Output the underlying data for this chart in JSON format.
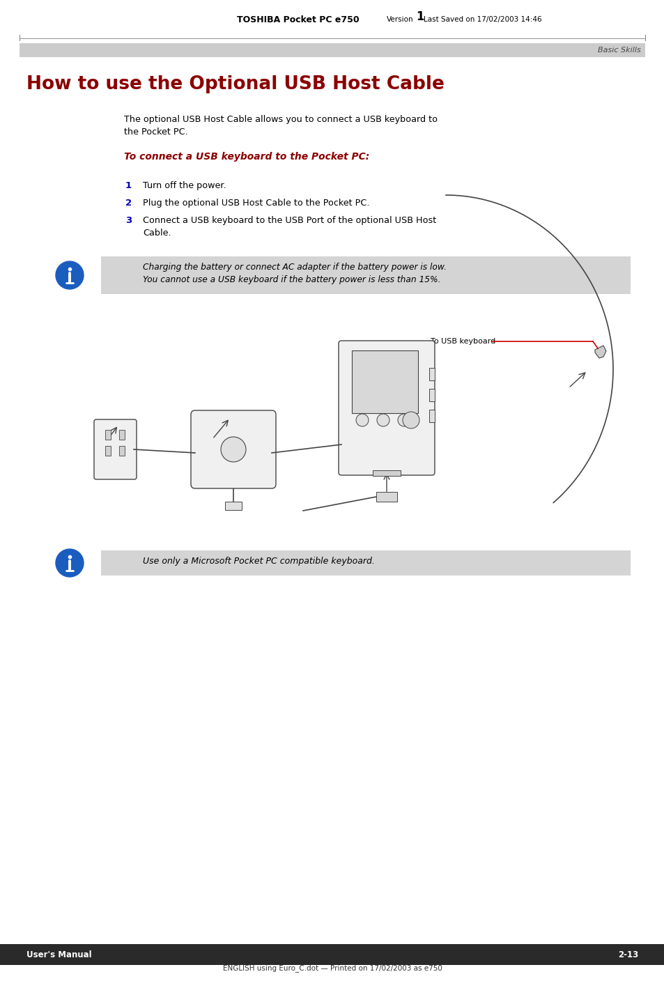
{
  "page_bg": "#ffffff",
  "header_bold": "TOSHIBA Pocket PC e750",
  "header_normal": " Version ",
  "header_version_num": "1",
  "header_saved": " Last Saved on 17/02/2003 14:46",
  "header_text_color": "#000000",
  "top_bar_color": "#cccccc",
  "top_bar_label": "Basic Skills",
  "title": "How to use the Optional USB Host Cable",
  "title_color": "#8b0000",
  "body_intro_line1": "The optional USB Host Cable allows you to connect a USB keyboard to",
  "body_intro_line2": "the Pocket PC.",
  "subheading": "To connect a USB keyboard to the Pocket PC:",
  "subheading_color": "#8b0000",
  "steps": [
    {
      "num": "1",
      "text": "Turn off the power."
    },
    {
      "num": "2",
      "text": "Plug the optional USB Host Cable to the Pocket PC."
    },
    {
      "num": "3",
      "text": "Connect a USB keyboard to the USB Port of the optional USB Host"
    },
    {
      "num": "",
      "text": "Cable."
    }
  ],
  "step_num_color": "#0000bb",
  "note1_bg": "#d4d4d4",
  "note1_line1": "Charging the battery or connect AC adapter if the battery power is low.",
  "note1_line2": "You cannot use a USB keyboard if the battery power is less than 15%.",
  "note2_bg": "#d4d4d4",
  "note2_text": "Use only a Microsoft Pocket PC compatible keyboard.",
  "footer_bar_color": "#2a2a2a",
  "footer_text": "User's Manual",
  "footer_text_color": "#ffffff",
  "footer_page": "2-13",
  "bottom_text": "ENGLISH using Euro_C.dot — Printed on 17/02/2003 as e750",
  "info_icon_color": "#1a5dbf",
  "diagram_line_color": "#444444",
  "label_line_color": "#cc0000",
  "label_text": "To USB keyboard"
}
